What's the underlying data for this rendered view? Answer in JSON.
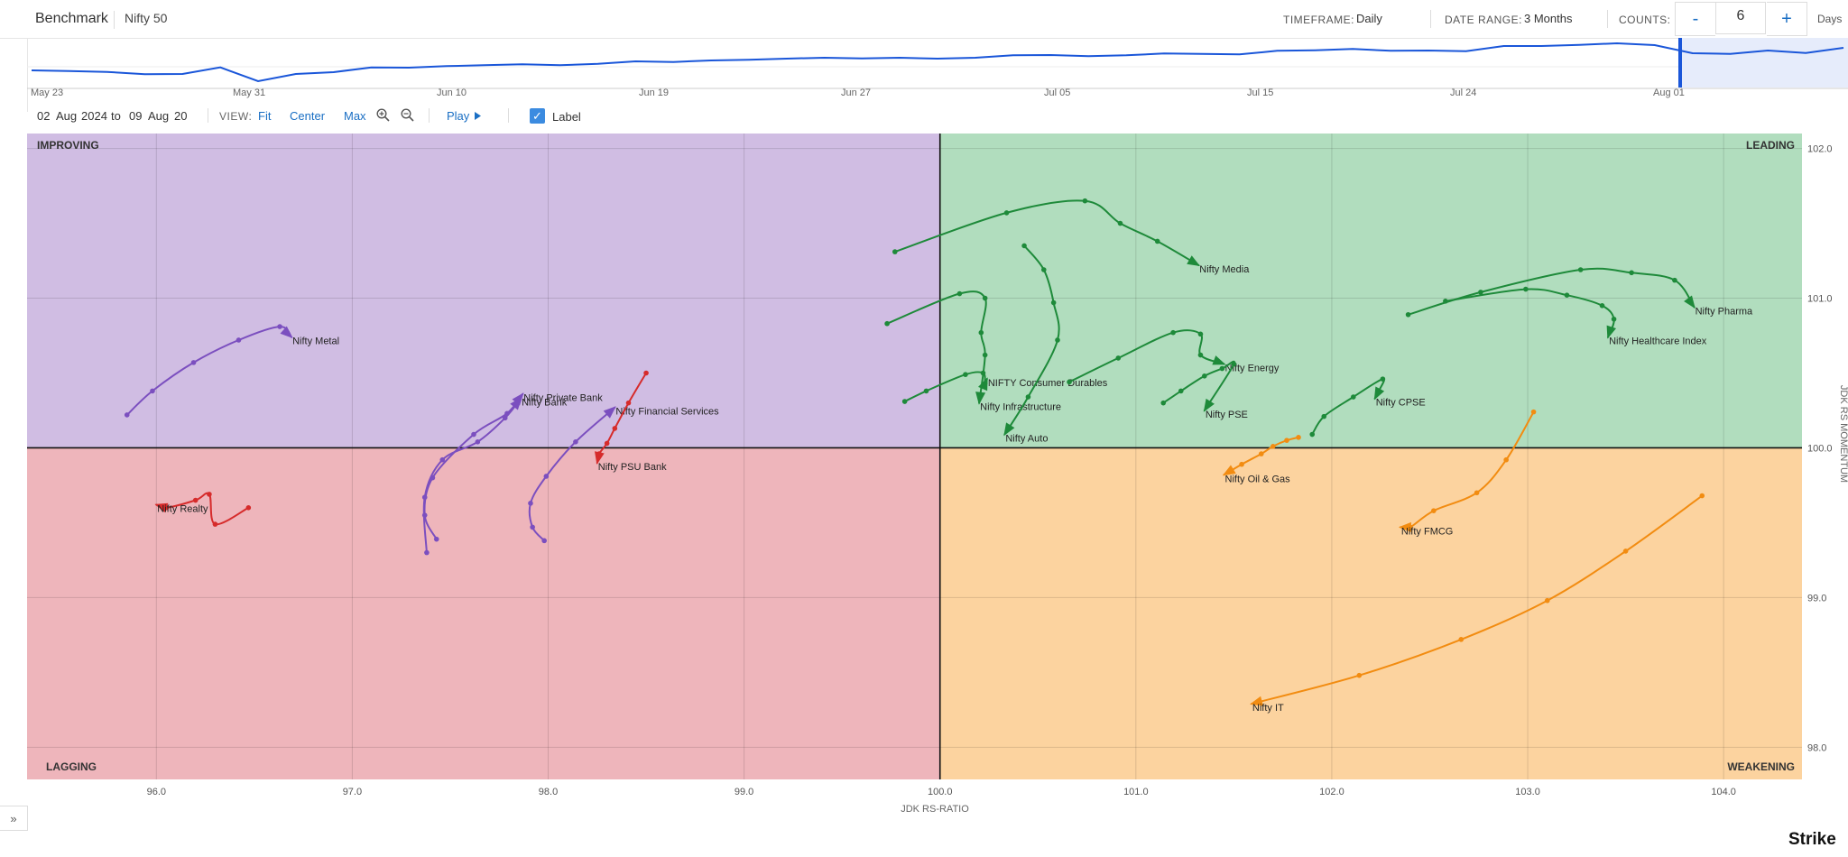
{
  "header": {
    "benchmark_label": "Benchmark",
    "benchmark_value": "Nifty 50",
    "timeframe_label": "TIMEFRAME:",
    "timeframe_value": "Daily",
    "date_range_label": "DATE RANGE:",
    "date_range_value": "3 Months",
    "counts_label": "COUNTS:",
    "minus_label": "-",
    "count_value": "6",
    "plus_label": "+",
    "unit_label": "Days"
  },
  "navigator": {
    "date_labels": [
      "May 23",
      "May 31",
      "Jun 10",
      "Jun 19",
      "Jun 27",
      "Jul 05",
      "Jul 15",
      "Jul 24",
      "Aug 01"
    ],
    "series_values": [
      0.72,
      0.7,
      0.67,
      0.59,
      0.6,
      0.82,
      0.36,
      0.6,
      0.66,
      0.82,
      0.81,
      0.86,
      0.89,
      0.92,
      0.89,
      0.94,
      1.02,
      1.0,
      1.05,
      1.07,
      1.11,
      1.14,
      1.12,
      1.14,
      1.11,
      1.14,
      1.22,
      1.23,
      1.19,
      1.22,
      1.28,
      1.27,
      1.25,
      1.37,
      1.39,
      1.43,
      1.37,
      1.38,
      1.36,
      1.53,
      1.53,
      1.57,
      1.62,
      1.56,
      1.29,
      1.27,
      1.38,
      1.3,
      1.47
    ],
    "accent_color": "#1a56d9"
  },
  "toolbar": {
    "from_day": "02",
    "from_month": "Aug",
    "from_year": "2024",
    "to_label": "to",
    "to_day": "09",
    "to_month": "Aug",
    "to_year": "20",
    "view_label": "VIEW:",
    "fit_label": "Fit",
    "center_label": "Center",
    "max_label": "Max",
    "zoom_in_icon": "zoom-in-icon",
    "zoom_out_icon": "zoom-out-icon",
    "play_label": "Play",
    "label_toggle": "Label"
  },
  "chart_data": {
    "type": "scatter",
    "xlabel": "JDK RS-RATIO",
    "ylabel": "JDK RS MOMENTUM",
    "xlim": [
      95.34,
      104.4
    ],
    "ylim": [
      97.785,
      102.1
    ],
    "x_ticks": [
      "96.0",
      "97.0",
      "98.0",
      "99.0",
      "100.0",
      "101.0",
      "102.0",
      "103.0",
      "104.0"
    ],
    "y_ticks": [
      "98.0",
      "99.0",
      "100.0",
      "101.0",
      "102.0"
    ],
    "grid": true,
    "center": [
      100,
      100
    ],
    "quadrants": [
      {
        "name": "IMPROVING",
        "color": "#d0bde3"
      },
      {
        "name": "LEADING",
        "color": "#b1ddbe"
      },
      {
        "name": "LAGGING",
        "color": "#eeb5bb"
      },
      {
        "name": "WEAKENING",
        "color": "#fcd39f"
      }
    ],
    "series": [
      {
        "name": "Nifty Media",
        "color": "#1e8a3a",
        "points": [
          [
            99.77,
            101.31
          ],
          [
            100.34,
            101.57
          ],
          [
            100.74,
            101.65
          ],
          [
            100.92,
            101.5
          ],
          [
            101.11,
            101.38
          ],
          [
            101.32,
            101.22
          ]
        ]
      },
      {
        "name": "Nifty Pharma",
        "color": "#1e8a3a",
        "points": [
          [
            102.39,
            100.89
          ],
          [
            102.76,
            101.04
          ],
          [
            103.27,
            101.19
          ],
          [
            103.53,
            101.17
          ],
          [
            103.75,
            101.12
          ],
          [
            103.85,
            100.94
          ]
        ]
      },
      {
        "name": "Nifty Healthcare Index",
        "color": "#1e8a3a",
        "points": [
          [
            102.58,
            100.98
          ],
          [
            102.99,
            101.06
          ],
          [
            103.2,
            101.02
          ],
          [
            103.38,
            100.95
          ],
          [
            103.44,
            100.86
          ],
          [
            103.41,
            100.74
          ]
        ]
      },
      {
        "name": "NIFTY Consumer Durables",
        "color": "#1e8a3a",
        "points": [
          [
            99.82,
            100.31
          ],
          [
            99.93,
            100.38
          ],
          [
            100.13,
            100.49
          ],
          [
            100.22,
            100.5
          ],
          [
            100.23,
            100.43
          ],
          [
            100.24,
            100.46
          ]
        ]
      },
      {
        "name": "Nifty Infrastructure",
        "color": "#1e8a3a",
        "points": [
          [
            99.73,
            100.83
          ],
          [
            100.1,
            101.03
          ],
          [
            100.23,
            101.0
          ],
          [
            100.21,
            100.77
          ],
          [
            100.23,
            100.62
          ],
          [
            100.2,
            100.3
          ]
        ]
      },
      {
        "name": "Nifty Auto",
        "color": "#1e8a3a",
        "points": [
          [
            100.43,
            101.35
          ],
          [
            100.53,
            101.19
          ],
          [
            100.58,
            100.97
          ],
          [
            100.6,
            100.72
          ],
          [
            100.45,
            100.34
          ],
          [
            100.33,
            100.09
          ]
        ]
      },
      {
        "name": "Nifty Energy",
        "color": "#1e8a3a",
        "points": [
          [
            100.66,
            100.44
          ],
          [
            100.91,
            100.6
          ],
          [
            101.19,
            100.77
          ],
          [
            101.33,
            100.76
          ],
          [
            101.33,
            100.62
          ],
          [
            101.45,
            100.56
          ]
        ]
      },
      {
        "name": "Nifty PSE",
        "color": "#1e8a3a",
        "points": [
          [
            101.14,
            100.3
          ],
          [
            101.23,
            100.38
          ],
          [
            101.35,
            100.48
          ],
          [
            101.44,
            100.53
          ],
          [
            101.5,
            100.56
          ],
          [
            101.35,
            100.25
          ]
        ]
      },
      {
        "name": "Nifty CPSE",
        "color": "#1e8a3a",
        "points": [
          [
            101.9,
            100.09
          ],
          [
            101.96,
            100.21
          ],
          [
            102.11,
            100.34
          ],
          [
            102.26,
            100.46
          ],
          [
            102.24,
            100.38
          ],
          [
            102.22,
            100.33
          ]
        ]
      },
      {
        "name": "Nifty Metal",
        "color": "#7b4fbf",
        "points": [
          [
            95.85,
            100.22
          ],
          [
            95.98,
            100.38
          ],
          [
            96.19,
            100.57
          ],
          [
            96.42,
            100.72
          ],
          [
            96.63,
            100.81
          ],
          [
            96.69,
            100.74
          ]
        ]
      },
      {
        "name": "Nifty Private Bank",
        "color": "#7b4fbf",
        "points": [
          [
            97.43,
            99.39
          ],
          [
            97.37,
            99.55
          ],
          [
            97.41,
            99.8
          ],
          [
            97.62,
            100.09
          ],
          [
            97.79,
            100.23
          ],
          [
            97.87,
            100.36
          ]
        ]
      },
      {
        "name": "Nifty Bank",
        "color": "#7b4fbf",
        "points": [
          [
            97.38,
            99.3
          ],
          [
            97.37,
            99.67
          ],
          [
            97.46,
            99.92
          ],
          [
            97.64,
            100.04
          ],
          [
            97.78,
            100.2
          ],
          [
            97.86,
            100.33
          ]
        ]
      },
      {
        "name": "Nifty Financial Services",
        "color": "#7b4fbf",
        "points": [
          [
            97.98,
            99.38
          ],
          [
            97.92,
            99.47
          ],
          [
            97.91,
            99.63
          ],
          [
            97.99,
            99.81
          ],
          [
            98.14,
            100.04
          ],
          [
            98.34,
            100.27
          ]
        ]
      },
      {
        "name": "Nifty PSU Bank",
        "color": "#d62b2b",
        "points": [
          [
            98.5,
            100.5
          ],
          [
            98.41,
            100.3
          ],
          [
            98.34,
            100.13
          ],
          [
            98.3,
            100.03
          ],
          [
            98.26,
            99.96
          ],
          [
            98.25,
            99.9
          ]
        ]
      },
      {
        "name": "Nifty Realty",
        "color": "#d62b2b",
        "points": [
          [
            96.47,
            99.6
          ],
          [
            96.3,
            99.49
          ],
          [
            96.27,
            99.69
          ],
          [
            96.2,
            99.65
          ],
          [
            96.05,
            99.6
          ],
          [
            96.0,
            99.62
          ]
        ]
      },
      {
        "name": "Nifty Oil & Gas",
        "color": "#f28c11",
        "points": [
          [
            101.83,
            100.07
          ],
          [
            101.77,
            100.05
          ],
          [
            101.7,
            100.01
          ],
          [
            101.64,
            99.96
          ],
          [
            101.54,
            99.89
          ],
          [
            101.45,
            99.82
          ]
        ]
      },
      {
        "name": "Nifty FMCG",
        "color": "#f28c11",
        "points": [
          [
            103.03,
            100.24
          ],
          [
            102.89,
            99.92
          ],
          [
            102.74,
            99.7
          ],
          [
            102.52,
            99.58
          ],
          [
            102.4,
            99.47
          ],
          [
            102.35,
            99.47
          ]
        ]
      },
      {
        "name": "Nifty IT",
        "color": "#f28c11",
        "points": [
          [
            103.89,
            99.68
          ],
          [
            103.5,
            99.31
          ],
          [
            103.1,
            98.98
          ],
          [
            102.66,
            98.72
          ],
          [
            102.14,
            98.48
          ],
          [
            101.59,
            98.29
          ]
        ]
      }
    ]
  },
  "brand": {
    "name": "Strike"
  }
}
